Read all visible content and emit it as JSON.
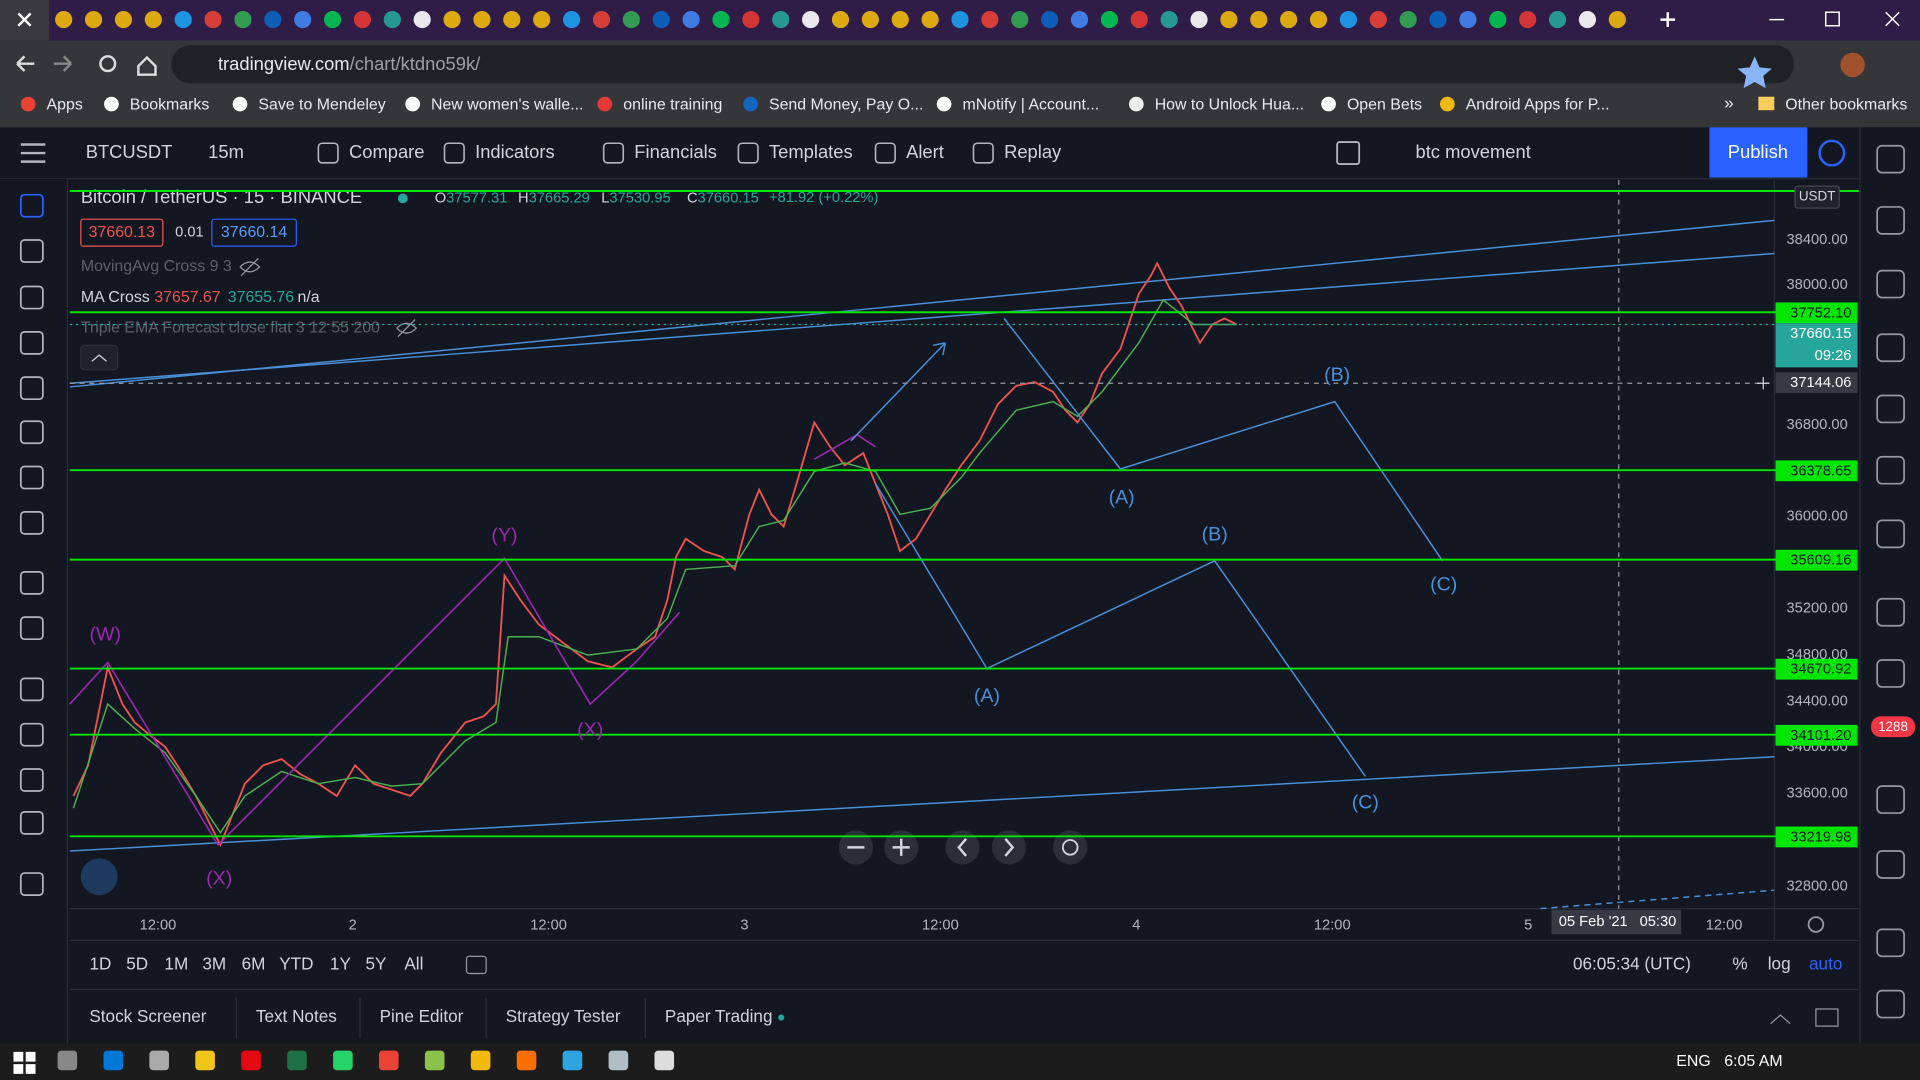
{
  "browser": {
    "url_host": "tradingview.com",
    "url_path": "/chart/ktdno59k/",
    "bookmarks": [
      "Apps",
      "Bookmarks",
      "Save to Mendeley",
      "New women's walle...",
      "online training",
      "Send Money, Pay O...",
      "mNotify | Account...",
      "How to Unlock Hua...",
      "Open Bets",
      "Android Apps for P..."
    ],
    "more": "»",
    "other_bookmarks": "Other bookmarks"
  },
  "toolbar": {
    "symbol": "BTCUSDT",
    "interval": "15m",
    "items": [
      "Compare",
      "Indicators",
      "Financials",
      "Templates",
      "Alert",
      "Replay"
    ],
    "layout_name": "btc movement",
    "publish": "Publish"
  },
  "legend": {
    "title": "Bitcoin / TetherUS · 15 · BINANCE",
    "ohlc": [
      {
        "label": "O",
        "value": "37577.31"
      },
      {
        "label": "H",
        "value": "37665.29"
      },
      {
        "label": "L",
        "value": "37530.95"
      },
      {
        "label": "C",
        "value": "37660.15"
      }
    ],
    "change": "+81.92 (+0.22%)",
    "bid": "37660.13",
    "spread": "0.01",
    "ask": "37660.14",
    "indicators": [
      {
        "name": "MovingAvg Cross 9 3"
      },
      {
        "name": "MA Cross",
        "values": [
          "37657.67",
          "37655.76",
          "n/a"
        ]
      },
      {
        "name": "Triple EMA Forecast close flat 3 12 55 200"
      }
    ]
  },
  "price_axis": {
    "currency": "USDT",
    "ticks": [
      "38400.00",
      "38000.00",
      "36800.00",
      "36000.00",
      "35200.00",
      "34800.00",
      "34400.00",
      "34000.00",
      "33600.00",
      "32800.00"
    ],
    "levels": [
      "37752.10",
      "36378.65",
      "35609.16",
      "34670.92",
      "34101.20",
      "33219.98"
    ],
    "last_price": "37660.15",
    "countdown": "09:26",
    "crosshair_price": "37144.06"
  },
  "time_axis": {
    "ticks": [
      "12:00",
      "2",
      "12:00",
      "3",
      "12:00",
      "4",
      "12:00",
      "5",
      "12:00"
    ],
    "crosshair_date": "05 Feb '21",
    "crosshair_time": "05:30"
  },
  "wave_labels": [
    "(W)",
    "(X)",
    "(Y)",
    "(X)",
    "(A)",
    "(B)",
    "(C)",
    "(A)",
    "(B)",
    "(C)"
  ],
  "range_bar": {
    "ranges": [
      "1D",
      "5D",
      "1M",
      "3M",
      "6M",
      "YTD",
      "1Y",
      "5Y",
      "All"
    ],
    "clock": "06:05:34 (UTC)",
    "options": [
      "%",
      "log",
      "auto"
    ]
  },
  "panel_tabs": [
    "Stock Screener",
    "Text Notes",
    "Pine Editor",
    "Strategy Tester",
    "Paper Trading"
  ],
  "notifications": "1288",
  "taskbar": {
    "language": "ENG",
    "time": "6:05 AM"
  }
}
